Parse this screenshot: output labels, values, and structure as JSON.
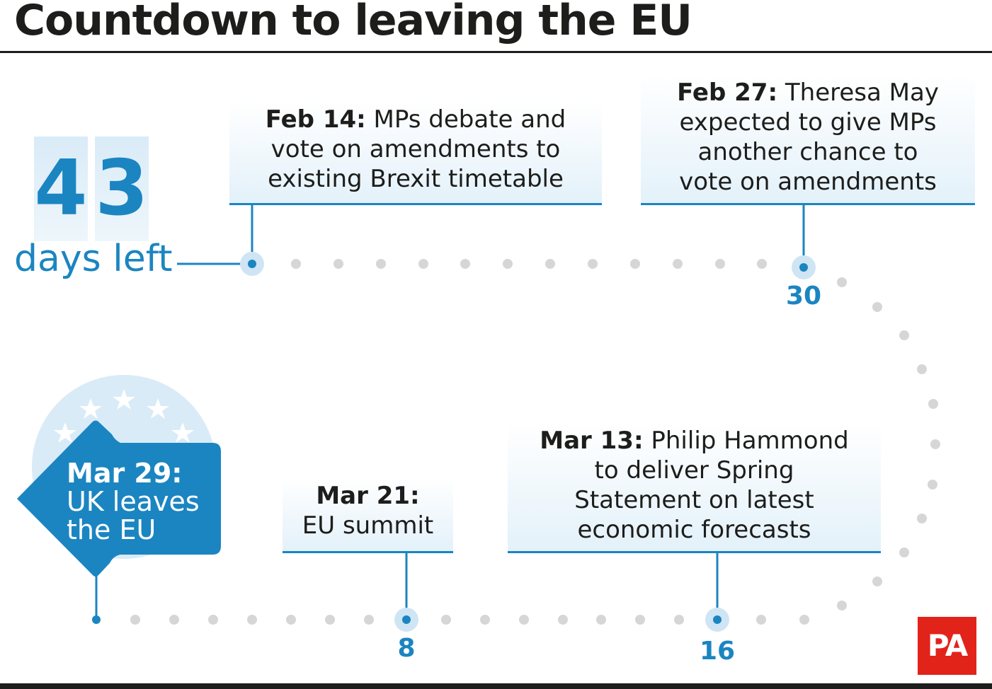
{
  "title": "Countdown to leaving the EU",
  "countdown": {
    "digit1": "4",
    "digit2": "3",
    "label": "days left"
  },
  "events": {
    "feb14": {
      "date": "Feb 14:",
      "text": [
        "MPs debate and",
        "vote on amendments to",
        "existing Brexit timetable"
      ]
    },
    "feb27": {
      "date": "Feb 27:",
      "text": [
        "Theresa May",
        "expected to give MPs",
        "another chance to",
        "vote on amendments"
      ]
    },
    "mar13": {
      "date": "Mar 13:",
      "text": [
        "Philip Hammond",
        "to deliver Spring",
        "Statement on latest",
        "economic forecasts"
      ]
    },
    "mar21": {
      "date": "Mar 21:",
      "text": [
        "EU summit"
      ]
    },
    "mar29": {
      "date": "Mar 29:",
      "text": [
        "UK leaves",
        "the EU"
      ]
    }
  },
  "ticks": {
    "t30": "30",
    "t16": "16",
    "t8": "8"
  },
  "logo": "PA",
  "colors": {
    "accent": "#1b85c1",
    "dots": "#d6d6d6",
    "logo": "#e2231a",
    "text": "#1d1d1b"
  }
}
